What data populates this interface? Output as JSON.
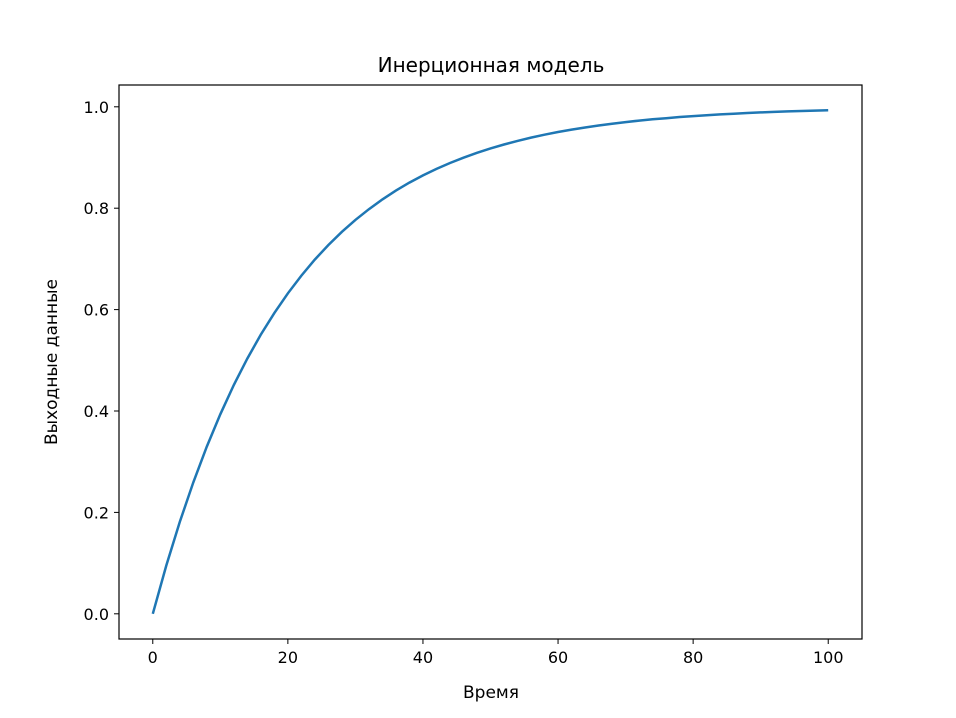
{
  "chart_data": {
    "type": "line",
    "title": "Инерционная модель",
    "xlabel": "Время",
    "ylabel": "Выходные данные",
    "xlim": [
      -5,
      105
    ],
    "ylim": [
      -0.0497,
      1.043
    ],
    "xticks": [
      "0",
      "20",
      "40",
      "60",
      "80",
      "100"
    ],
    "yticks": [
      "0.0",
      "0.2",
      "0.4",
      "0.6",
      "0.8",
      "1.0"
    ],
    "grid": false,
    "color": "#1f77b4",
    "series": [
      {
        "x": [
          0,
          2,
          4,
          6,
          8,
          10,
          12,
          14,
          16,
          18,
          20,
          22,
          24,
          26,
          28,
          30,
          32,
          34,
          36,
          38,
          40,
          42,
          44,
          46,
          48,
          50,
          52,
          54,
          56,
          58,
          60,
          62,
          64,
          66,
          68,
          70,
          72,
          74,
          76,
          78,
          80,
          82,
          84,
          86,
          88,
          90,
          92,
          94,
          96,
          98,
          100
        ],
        "y": [
          0,
          0.0952,
          0.1813,
          0.2592,
          0.3297,
          0.3935,
          0.4512,
          0.5034,
          0.5507,
          0.5934,
          0.6321,
          0.6671,
          0.6988,
          0.7275,
          0.7534,
          0.7769,
          0.7981,
          0.8173,
          0.8347,
          0.8504,
          0.8647,
          0.8775,
          0.8892,
          0.8997,
          0.9093,
          0.9179,
          0.9257,
          0.9328,
          0.9392,
          0.945,
          0.9502,
          0.955,
          0.9592,
          0.9631,
          0.9666,
          0.9698,
          0.9727,
          0.9753,
          0.9776,
          0.9798,
          0.9817,
          0.9834,
          0.985,
          0.9864,
          0.9877,
          0.9889,
          0.9899,
          0.9909,
          0.9918,
          0.9926,
          0.9933
        ]
      }
    ]
  }
}
